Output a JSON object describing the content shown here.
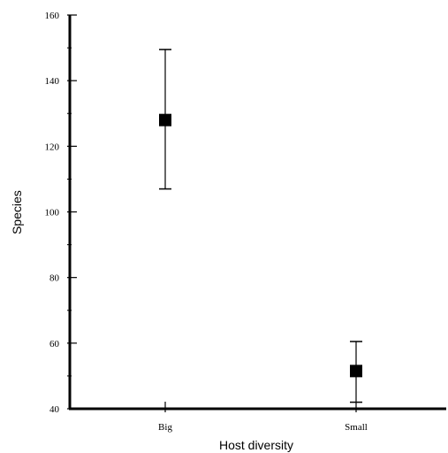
{
  "chart_data": {
    "type": "scatter",
    "title": "",
    "xlabel": "Host diversity",
    "ylabel": "Species",
    "categories": [
      "Big",
      "Small"
    ],
    "series": [
      {
        "values": [
          128,
          51.5
        ],
        "error_low": [
          107,
          42
        ],
        "error_high": [
          149.5,
          60.5
        ]
      }
    ],
    "ylim": [
      40,
      160
    ],
    "y_major_ticks": [
      40,
      60,
      80,
      100,
      120,
      140,
      160
    ],
    "y_minor_ticks": [
      50,
      70,
      90,
      110,
      130,
      150
    ],
    "marker": "square",
    "grid": false,
    "colors": {
      "marker": "#000000",
      "axis": "#000000"
    }
  }
}
